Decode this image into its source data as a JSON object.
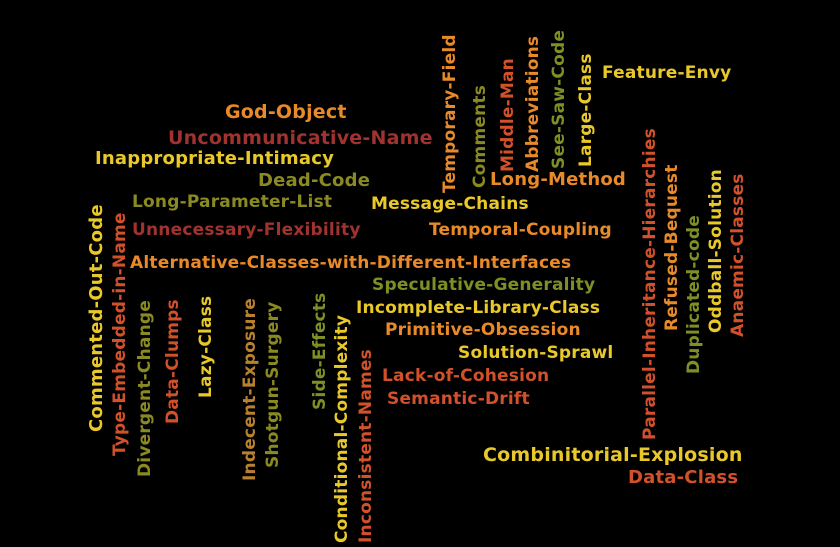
{
  "colors": {
    "background": "#000000",
    "yellow": "#E9C92A",
    "orange": "#E8892A",
    "red_orange": "#D2512B",
    "maroon": "#A0332F",
    "olive": "#8A8A22",
    "olive_green": "#7E8F24",
    "tan": "#B8812E"
  },
  "words": {
    "god_object": "God-Object",
    "uncommunicative_name": "Uncommunicative-Name",
    "inappropriate_intimacy": "Inappropriate-Intimacy",
    "dead_code": "Dead-Code",
    "long_parameter_list": "Long-Parameter-List",
    "message_chains": "Message-Chains",
    "long_method": "Long-Method",
    "unnecessary_flexibility": "Unnecessary-Flexibility",
    "temporal_coupling": "Temporal-Coupling",
    "alternative_classes": "Alternative-Classes-with-Different-Interfaces",
    "speculative_generality": "Speculative-Generality",
    "incomplete_library_class": "Incomplete-Library-Class",
    "primitive_obsession": "Primitive-Obsession",
    "solution_sprawl": "Solution-Sprawl",
    "lack_of_cohesion": "Lack-of-Cohesion",
    "semantic_drift": "Semantic-Drift",
    "feature_envy": "Feature-Envy",
    "combinitorial_explosion": "Combinitorial-Explosion",
    "data_class": "Data-Class",
    "temporary_field": "Temporary-Field",
    "comments": "Comments",
    "middle_man": "Middle-Man",
    "abbreviations": "Abbreviations",
    "see_saw_code": "See-Saw-Code",
    "large_class": "Large-Class",
    "parallel_inheritance": "Parallel-Inheritance-Hierarchies",
    "refused_bequest": "Refused-Bequest",
    "duplicated_code": "Duplicated-code",
    "oddball_solution": "Oddball-Solution",
    "anaemic_classes": "Anaemic-Classes",
    "commented_out_code": "Commented-Out-Code",
    "type_embedded_in_name": "Type-Embedded-in-Name",
    "divergent_change": "Divergent-Change",
    "data_clumps": "Data-Clumps",
    "lazy_class": "Lazy-Class",
    "indecent_exposure": "Indecent-Exposure",
    "shotgun_surgery": "Shotgun-Surgery",
    "side_effects": "Side-Effects",
    "conditional_complexity": "Conditional-Complexity",
    "inconsistent_names": "Inconsistent-Names"
  }
}
